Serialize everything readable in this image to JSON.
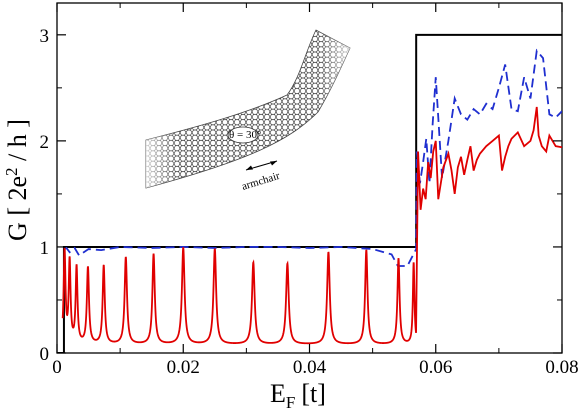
{
  "chart_data": {
    "type": "line",
    "title": "",
    "xlabel": {
      "main": "E",
      "sub": "F",
      "unit": "[t]"
    },
    "ylabel": {
      "pre": "G [ 2e",
      "sup": "2",
      "post": " / h ]"
    },
    "xlim": [
      0,
      0.08
    ],
    "ylim": [
      0,
      3.3
    ],
    "xticks": [
      0,
      0.02,
      0.04,
      0.06,
      0.08
    ],
    "xtick_labels": [
      "0",
      "0.02",
      "0.04",
      "0.06",
      "0.08"
    ],
    "yticks": [
      0,
      1,
      2,
      3
    ],
    "ytick_labels": [
      "0",
      "1",
      "2",
      "3"
    ],
    "grid": false,
    "legend": "none",
    "series": [
      {
        "style": "solid",
        "color": "#000000",
        "kind": "steps",
        "x": [
          0,
          0.0011,
          0.0011,
          0.0569,
          0.0569,
          0.08
        ],
        "y": [
          0,
          0,
          1,
          1,
          3,
          3
        ]
      },
      {
        "style": "dashed",
        "color": "#1f2fd0",
        "x": [
          0.0011,
          0.0015,
          0.002,
          0.0028,
          0.0035,
          0.005,
          0.007,
          0.01,
          0.015,
          0.02,
          0.025,
          0.03,
          0.035,
          0.04,
          0.045,
          0.05,
          0.053,
          0.054,
          0.0555,
          0.0569,
          0.057,
          0.0575,
          0.058,
          0.0585,
          0.059,
          0.0595,
          0.06,
          0.061,
          0.062,
          0.063,
          0.064,
          0.065,
          0.066,
          0.067,
          0.068,
          0.069,
          0.07,
          0.071,
          0.072,
          0.073,
          0.074,
          0.075,
          0.076,
          0.077,
          0.078,
          0.079,
          0.08
        ],
        "y": [
          0.98,
          0.99,
          0.95,
          0.99,
          0.92,
          0.98,
          0.97,
          1.0,
          0.99,
          1.0,
          0.99,
          1.0,
          1.0,
          0.99,
          1.0,
          0.98,
          0.93,
          0.82,
          0.82,
          0.98,
          1.9,
          1.6,
          1.8,
          2.02,
          1.6,
          2.15,
          2.6,
          1.65,
          2.0,
          2.4,
          2.25,
          2.2,
          2.3,
          2.25,
          2.35,
          2.3,
          2.5,
          2.72,
          2.3,
          2.28,
          2.6,
          2.4,
          2.85,
          2.78,
          2.25,
          2.22,
          2.28
        ]
      },
      {
        "style": "solid",
        "color": "#e00000",
        "kind": "resonances",
        "baseline": 0.08,
        "peaks": [
          {
            "x": 0.0012,
            "h": 0.95,
            "w": 0.00035
          },
          {
            "x": 0.002,
            "h": 0.85,
            "w": 0.00035
          },
          {
            "x": 0.0031,
            "h": 0.8,
            "w": 0.00035
          },
          {
            "x": 0.0049,
            "h": 0.8,
            "w": 0.0004
          },
          {
            "x": 0.0074,
            "h": 0.82,
            "w": 0.0004
          },
          {
            "x": 0.0109,
            "h": 0.9,
            "w": 0.00045
          },
          {
            "x": 0.0153,
            "h": 0.93,
            "w": 0.00045
          },
          {
            "x": 0.02,
            "h": 0.99,
            "w": 0.0005
          },
          {
            "x": 0.025,
            "h": 0.98,
            "w": 0.0005
          },
          {
            "x": 0.0311,
            "h": 0.85,
            "w": 0.0005
          },
          {
            "x": 0.0365,
            "h": 0.84,
            "w": 0.0005
          },
          {
            "x": 0.043,
            "h": 0.95,
            "w": 0.0005
          },
          {
            "x": 0.049,
            "h": 0.97,
            "w": 0.00045
          },
          {
            "x": 0.0541,
            "h": 0.89,
            "w": 0.0004
          },
          {
            "x": 0.0565,
            "h": 0.85,
            "w": 0.0003
          }
        ],
        "upper_x": [
          0.0569,
          0.0572,
          0.0576,
          0.058,
          0.0584,
          0.0588,
          0.0592,
          0.0596,
          0.06,
          0.0604,
          0.0612,
          0.062,
          0.0625,
          0.063,
          0.0635,
          0.064,
          0.0645,
          0.065,
          0.0655,
          0.066,
          0.0665,
          0.067,
          0.068,
          0.069,
          0.07,
          0.0705,
          0.071,
          0.0715,
          0.072,
          0.073,
          0.074,
          0.075,
          0.0755,
          0.076,
          0.0763,
          0.0768,
          0.0775,
          0.078,
          0.079,
          0.08
        ],
        "upper_y": [
          0.86,
          1.9,
          1.35,
          1.55,
          1.45,
          1.8,
          1.65,
          1.9,
          2.0,
          1.45,
          1.75,
          1.88,
          1.72,
          1.5,
          1.75,
          1.85,
          1.68,
          1.82,
          1.95,
          1.72,
          1.82,
          1.88,
          1.95,
          2.0,
          2.05,
          1.72,
          1.85,
          1.95,
          2.02,
          2.08,
          1.95,
          2.0,
          2.1,
          2.32,
          2.05,
          1.95,
          1.9,
          2.05,
          1.95,
          1.94
        ]
      }
    ],
    "inset": {
      "angle_label": "θ = 30°",
      "direction_label": "armchair"
    }
  }
}
